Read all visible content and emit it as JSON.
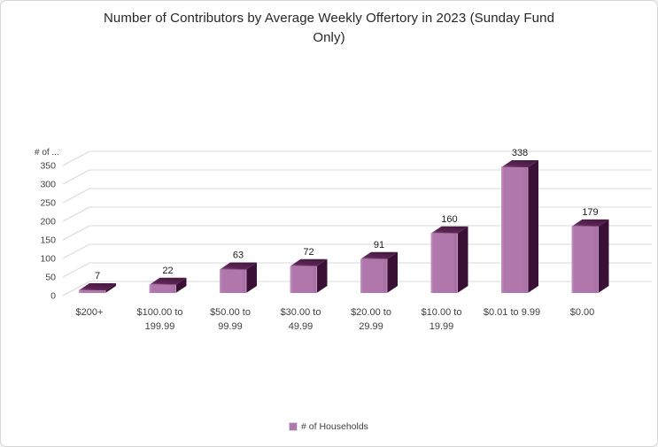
{
  "header": {
    "title_lines": [
      "Number of Contributors by Average Weekly Offertory in 2023 (Sunday Fund",
      "Only)"
    ]
  },
  "legend": {
    "label": "# of Households",
    "swatch_color": "#b077ad"
  },
  "chart_data": {
    "type": "bar",
    "style": "3d-column",
    "title": "Number of Contributors by Average Weekly Offertory in 2023 (Sunday Fund Only)",
    "ylabel": "# of ...",
    "xlabel": "",
    "categories": [
      "$200+",
      "$100.00 to 199.99",
      "$50.00 to 99.99",
      "$30.00 to 49.99",
      "$20.00 to 29.99",
      "$10.00 to 19.99",
      "$0.01 to 9.99",
      "$0.00"
    ],
    "category_label_lines": [
      [
        "$200+"
      ],
      [
        "$100.00 to",
        "199.99"
      ],
      [
        "$50.00 to",
        "99.99"
      ],
      [
        "$30.00 to",
        "49.99"
      ],
      [
        "$20.00 to",
        "29.99"
      ],
      [
        "$10.00 to",
        "19.99"
      ],
      [
        "$0.01 to 9.99"
      ],
      [
        "$0.00"
      ]
    ],
    "series": [
      {
        "name": "# of Households",
        "values": [
          7,
          22,
          63,
          72,
          91,
          160,
          338,
          179
        ]
      }
    ],
    "show_data_labels": true,
    "ylim": [
      0,
      350
    ],
    "ytick_step": 50,
    "grid": true,
    "legend_position": "bottom",
    "colors": {
      "bar_front": "#b077ad",
      "bar_front_highlight": "#c596c2",
      "bar_front_dark": "#a56ca2",
      "bar_top": "#5d2656",
      "bar_top_highlight": "#9d6197",
      "bar_top_dark": "#471a41",
      "bar_side": "#3b1037",
      "bar_edge_highlight": "#d3abd0",
      "gridline": "#d9d9d9",
      "tick_label": "#404040",
      "value_label": "#1a1a1a",
      "title": "#262626"
    }
  }
}
